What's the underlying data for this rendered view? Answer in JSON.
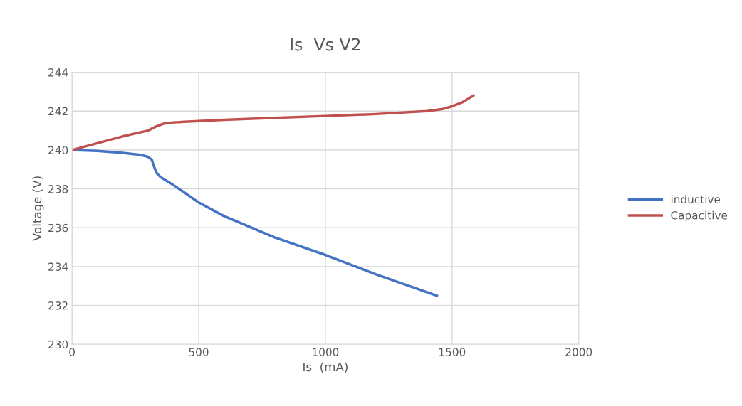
{
  "chart_data": {
    "type": "line",
    "title": "Is  Vs V2",
    "xlabel": "Is  (mA)",
    "ylabel": "Voltage (V)",
    "xlim": [
      0,
      2000
    ],
    "xticks": [
      0,
      500,
      1000,
      1500,
      2000
    ],
    "ylim": [
      230,
      244
    ],
    "yticks": [
      230,
      232,
      234,
      236,
      238,
      240,
      242,
      244
    ],
    "grid": true,
    "legend": "right",
    "marker": "none",
    "line_style": "solid",
    "series": [
      {
        "name": "inductive",
        "color": "#4472c4",
        "x": [
          0,
          100,
          200,
          270,
          300,
          315,
          325,
          335,
          350,
          400,
          500,
          600,
          800,
          1000,
          1200,
          1440
        ],
        "values": [
          240,
          239.95,
          239.85,
          239.75,
          239.65,
          239.5,
          239.1,
          238.8,
          238.6,
          238.2,
          237.3,
          236.6,
          235.5,
          234.6,
          233.6,
          232.5
        ]
      },
      {
        "name": "Capacitive",
        "color": "#c0504d",
        "x": [
          0,
          100,
          200,
          300,
          330,
          360,
          400,
          600,
          800,
          1000,
          1200,
          1400,
          1460,
          1500,
          1540,
          1584
        ],
        "values": [
          240,
          240.35,
          240.7,
          241.0,
          241.2,
          241.35,
          241.42,
          241.55,
          241.65,
          241.75,
          241.85,
          242.0,
          242.1,
          242.25,
          242.45,
          242.8
        ]
      }
    ]
  }
}
